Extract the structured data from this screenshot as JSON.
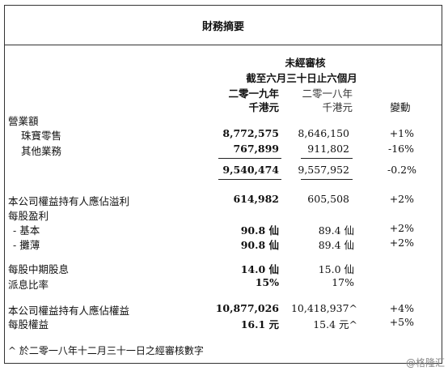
{
  "title": "財務摘要",
  "header": {
    "unaudited": "未經審核",
    "period": "截至六月三十日止六個月",
    "year_2019": "二零一九年",
    "year_2018": "二零一八年",
    "unit_2019": "千港元",
    "unit_2018": "千港元",
    "change": "變動"
  },
  "rows": [
    {
      "label": "營業額",
      "v2019": "",
      "v2018": "",
      "chg": ""
    },
    {
      "label": "珠寶零售",
      "v2019": "8,772,575",
      "v2018": "8,646,150",
      "chg": "+1%"
    },
    {
      "label": "其他業務",
      "v2019": "767,899",
      "v2018": "911,802",
      "chg": "-16%"
    },
    {
      "label": "",
      "v2019": "9,540,474",
      "v2018": "9,557,952",
      "chg": "-0.2%"
    },
    {
      "label": "本公司權益持有人應佔溢利",
      "v2019": "614,982",
      "v2018": "605,508",
      "chg": "+2%"
    },
    {
      "label": "每股盈利",
      "v2019": "",
      "v2018": "",
      "chg": ""
    },
    {
      "label": "- 基本",
      "v2019": "90.8 仙",
      "v2018": "89.4 仙",
      "chg": "+2%"
    },
    {
      "label": "- 攤薄",
      "v2019": "90.8 仙",
      "v2018": "89.4 仙",
      "chg": "+2%"
    },
    {
      "label": "每股中期股息",
      "v2019": "14.0 仙",
      "v2018": "15.0 仙",
      "chg": ""
    },
    {
      "label": "派息比率",
      "v2019": "15%",
      "v2018": "17%",
      "chg": ""
    },
    {
      "label": "本公司權益持有人應佔權益",
      "v2019": "10,877,026",
      "v2018": "10,418,937^",
      "chg": "+4%"
    },
    {
      "label": "每股權益",
      "v2019": "16.1 元",
      "v2018": "15.4 元^",
      "chg": "+5%"
    }
  ],
  "footnote": "^ 於二零一八年十二月三十一日之經審核數字",
  "watermark": "@格隆汇"
}
